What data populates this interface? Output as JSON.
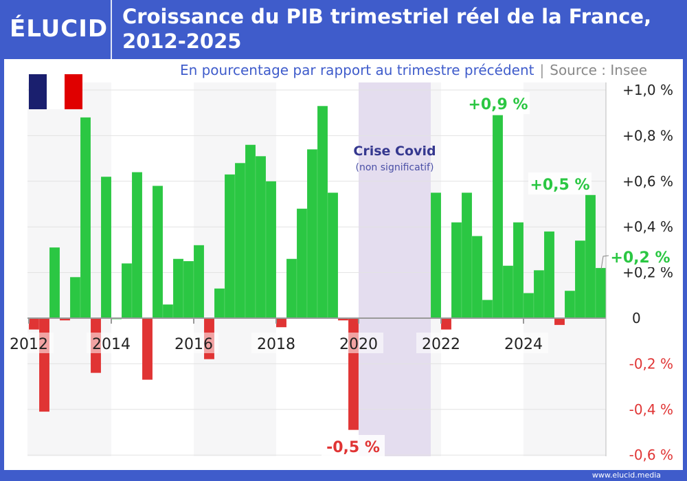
{
  "brand": {
    "logo": "ÉLUCID",
    "footer_url": "www.elucid.media"
  },
  "header": {
    "title": "Croissance du PIB trimestriel réel de la France, 2012-2025"
  },
  "subtitle": {
    "text": "En pourcentage par rapport au trimestre précédent",
    "separator": "|",
    "source": "Source : Insee"
  },
  "colors": {
    "positive": "#2bc743",
    "negative": "#e03434",
    "brand": "#3f5ccb",
    "covid_band": "#e4ddef",
    "band_gray": "#f6f6f7"
  },
  "chart_data": {
    "type": "bar",
    "title": "Croissance du PIB trimestriel réel de la France, 2012-2025",
    "ylabel": "",
    "xlabel": "",
    "ylim": [
      -0.6,
      1.0
    ],
    "grid": true,
    "y_ticks": [
      {
        "v": 1.0,
        "label": "+1,0 %"
      },
      {
        "v": 0.8,
        "label": "+0,8 %"
      },
      {
        "v": 0.6,
        "label": "+0,6 %"
      },
      {
        "v": 0.4,
        "label": "+0,4 %"
      },
      {
        "v": 0.2,
        "label": "+0,2 %"
      },
      {
        "v": 0,
        "label": "0"
      },
      {
        "v": -0.2,
        "label": "-0,2 %"
      },
      {
        "v": -0.4,
        "label": "-0,4 %"
      },
      {
        "v": -0.6,
        "label": "-0,6 %"
      }
    ],
    "x_ticks": [
      "2012",
      "2014",
      "2016",
      "2018",
      "2020",
      "2022",
      "2024"
    ],
    "start_year": 2012,
    "frequency": "quarterly",
    "values": [
      -0.05,
      -0.41,
      0.31,
      -0.01,
      0.18,
      0.88,
      -0.24,
      0.62,
      0.0,
      0.24,
      0.64,
      -0.27,
      0.58,
      0.06,
      0.26,
      0.25,
      0.32,
      -0.18,
      0.13,
      0.63,
      0.68,
      0.76,
      0.71,
      0.6,
      -0.04,
      0.26,
      0.48,
      0.74,
      0.93,
      0.55,
      -0.01,
      -0.49,
      null,
      null,
      null,
      null,
      null,
      null,
      null,
      0.55,
      -0.05,
      0.42,
      0.55,
      0.36,
      0.08,
      0.89,
      0.23,
      0.42,
      0.11,
      0.21,
      0.38,
      -0.03,
      0.12,
      0.34,
      0.54,
      0.22
    ],
    "covid_band": {
      "from": "2020 T1",
      "to": "2021 T3",
      "label": "Crise Covid",
      "note": "(non significatif)"
    },
    "annotations": [
      {
        "index": 31,
        "label": "-0,5 %"
      },
      {
        "index": 45,
        "label": "+0,9 %"
      },
      {
        "index": 54,
        "label": "+0,5 %"
      },
      {
        "index": 55,
        "label": "+0,2 %"
      }
    ]
  }
}
